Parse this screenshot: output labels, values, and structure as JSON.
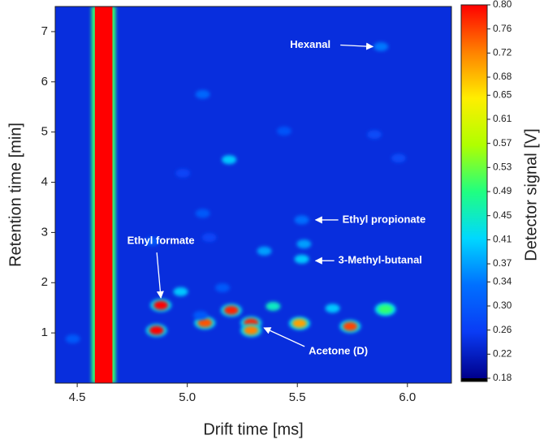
{
  "chart_data": {
    "type": "heatmap",
    "x_label": "Drift time [ms]",
    "y_label": "Retention time [min]",
    "colorbar_label": "Detector signal [V]",
    "xlim": [
      4.4,
      6.2
    ],
    "ylim": [
      0,
      7.5
    ],
    "xticks": [
      4.5,
      {
        "value": 5,
        "label": "5.0"
      },
      5.5,
      {
        "value": 6,
        "label": "6.0"
      }
    ],
    "yticks": [
      1,
      2,
      3,
      4,
      5,
      6,
      7
    ],
    "clim": [
      0.18,
      0.8
    ],
    "cticks": [
      0.18,
      0.22,
      0.26,
      {
        "value": 0.3,
        "label": "0.30"
      },
      0.34,
      0.37,
      0.41,
      0.45,
      0.49,
      0.53,
      0.57,
      0.61,
      0.65,
      0.68,
      0.72,
      0.76,
      {
        "value": 0.8,
        "label": "0.80"
      }
    ],
    "colorscale": [
      "#00008c",
      "#0a3cf5",
      "#0070ff",
      "#00d8ff",
      "#20ff80",
      "#b0ff00",
      "#ffee00",
      "#ff8000",
      "#ff0000"
    ],
    "baseline": 0.24,
    "rip": {
      "xrange": [
        4.58,
        4.66
      ],
      "value": 0.8
    },
    "spots": {
      "x": [
        5.88,
        5.07,
        5.44,
        5.19,
        5.07,
        5.52,
        5.53,
        5.52,
        5.35,
        5.1,
        4.84,
        4.98,
        4.88,
        4.97,
        4.86,
        5.08,
        5.2,
        5.29,
        5.29,
        5.39,
        5.51,
        5.66,
        5.74,
        5.9,
        4.48,
        5.16,
        5.06,
        5.96,
        5.85
      ],
      "y": [
        6.7,
        5.75,
        5.02,
        4.45,
        3.38,
        3.25,
        2.77,
        2.47,
        2.63,
        2.9,
        2.82,
        4.18,
        1.55,
        1.82,
        1.05,
        1.2,
        1.45,
        1.2,
        1.05,
        1.53,
        1.19,
        1.49,
        1.13,
        1.47,
        0.88,
        1.9,
        1.35,
        4.48,
        4.95
      ],
      "values": [
        0.34,
        0.32,
        0.29,
        0.4,
        0.3,
        0.33,
        0.37,
        0.4,
        0.37,
        0.27,
        0.3,
        0.27,
        0.8,
        0.4,
        0.8,
        0.75,
        0.78,
        0.78,
        0.72,
        0.45,
        0.7,
        0.4,
        0.76,
        0.5,
        0.3,
        0.3,
        0.3,
        0.28,
        0.28
      ]
    },
    "annotations": [
      {
        "text": "Hexanal",
        "x": 5.88,
        "y": 6.7
      },
      {
        "text": "Ethyl propionate",
        "x": 5.52,
        "y": 3.25
      },
      {
        "text": "3-Methyl-butanal",
        "x": 5.52,
        "y": 2.47
      },
      {
        "text": "Ethyl formate",
        "x": 4.88,
        "y": 1.6
      },
      {
        "text": "Acetone (D)",
        "x": 5.33,
        "y": 1.15
      }
    ]
  }
}
